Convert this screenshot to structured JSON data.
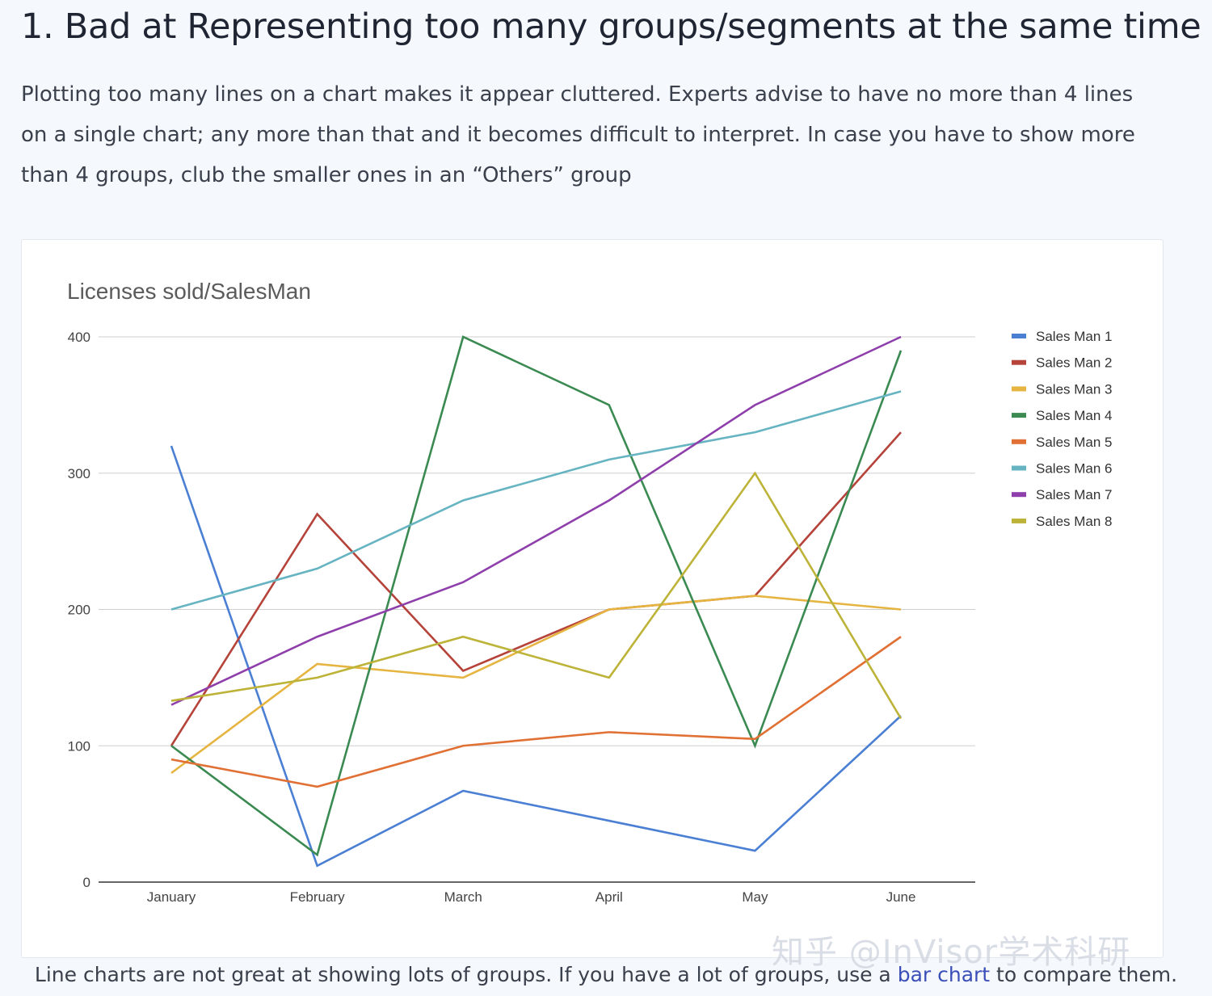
{
  "heading": "1. Bad at Representing too many groups/segments at the same time",
  "intro": "Plotting too many lines on a chart makes it appear cluttered. Experts advise to have no more than 4 lines on a single chart; any more than that and it becomes difficult to interpret. In case you have to show more than 4 groups, club the smaller ones in an “Others” group",
  "caption": {
    "before": "Line charts are not great at showing lots of groups. If you have a lot of groups, use a ",
    "link": "bar chart",
    "after": " to compare them."
  },
  "watermark": "知乎 @InVisor学术科研",
  "chart_data": {
    "type": "line",
    "title": "Licenses sold/SalesMan",
    "xlabel": "",
    "ylabel": "",
    "x": [
      "January",
      "February",
      "March",
      "April",
      "May",
      "June"
    ],
    "ylim": [
      0,
      400
    ],
    "yticks": [
      0,
      100,
      200,
      300,
      400
    ],
    "grid": true,
    "legend": "right",
    "series": [
      {
        "name": "Sales Man 1",
        "color": "#4a7fd4",
        "values": [
          320,
          12,
          67,
          45,
          23,
          122
        ]
      },
      {
        "name": "Sales Man 2",
        "color": "#b5433a",
        "values": [
          100,
          270,
          155,
          200,
          210,
          330
        ]
      },
      {
        "name": "Sales Man 3",
        "color": "#e6b440",
        "values": [
          80,
          160,
          150,
          200,
          210,
          200
        ]
      },
      {
        "name": "Sales Man 4",
        "color": "#3a8a52",
        "values": [
          100,
          20,
          400,
          350,
          100,
          390
        ]
      },
      {
        "name": "Sales Man 5",
        "color": "#e07034",
        "values": [
          90,
          70,
          100,
          110,
          105,
          180
        ]
      },
      {
        "name": "Sales Man 6",
        "color": "#66b4c2",
        "values": [
          200,
          230,
          280,
          310,
          330,
          360
        ]
      },
      {
        "name": "Sales Man 7",
        "color": "#8e3fab",
        "values": [
          130,
          180,
          220,
          280,
          350,
          400
        ]
      },
      {
        "name": "Sales Man 8",
        "color": "#bcb338",
        "values": [
          133,
          150,
          180,
          150,
          300,
          120
        ]
      }
    ]
  }
}
